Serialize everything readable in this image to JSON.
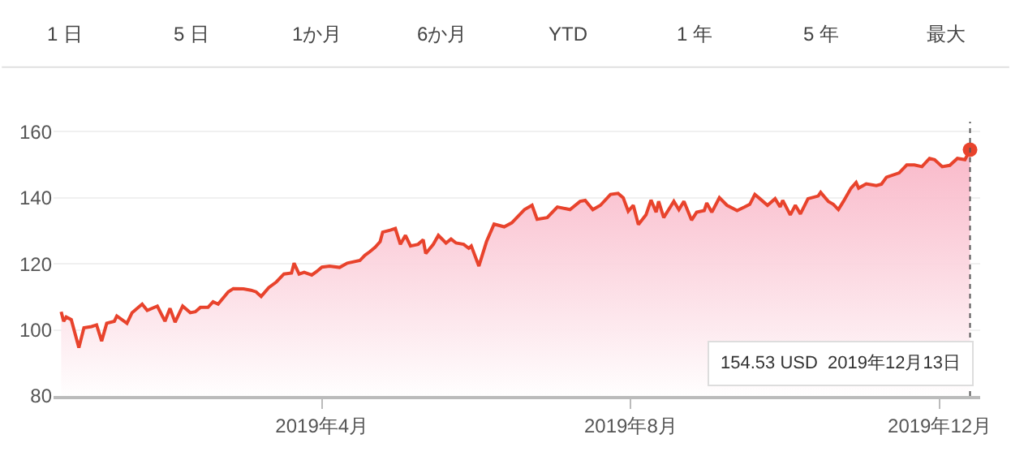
{
  "chart_data": {
    "type": "area",
    "series": [
      {
        "color": "#e8432c",
        "x": [
          "2018-12-19",
          "2018-12-20",
          "2018-12-21",
          "2018-12-23",
          "2018-12-26",
          "2018-12-28",
          "2018-12-31",
          "2019-01-02",
          "2019-01-04",
          "2019-01-06",
          "2019-01-09",
          "2019-01-10",
          "2019-01-14",
          "2019-01-16",
          "2019-01-20",
          "2019-01-22",
          "2019-01-26",
          "2019-01-29",
          "2019-01-31",
          "2019-02-02",
          "2019-02-05",
          "2019-02-08",
          "2019-02-10",
          "2019-02-12",
          "2019-02-15",
          "2019-02-17",
          "2019-02-19",
          "2019-02-23",
          "2019-02-25",
          "2019-03-01",
          "2019-03-04",
          "2019-03-06",
          "2019-03-08",
          "2019-03-11",
          "2019-03-14",
          "2019-03-17",
          "2019-03-20",
          "2019-03-21",
          "2019-03-23",
          "2019-03-25",
          "2019-03-28",
          "2019-03-30",
          "2019-04-01",
          "2019-04-04",
          "2019-04-08",
          "2019-04-11",
          "2019-04-16",
          "2019-04-18",
          "2019-04-20",
          "2019-04-22",
          "2019-04-24",
          "2019-04-25",
          "2019-04-28",
          "2019-04-30",
          "2019-05-02",
          "2019-05-04",
          "2019-05-06",
          "2019-05-09",
          "2019-05-11",
          "2019-05-12",
          "2019-05-15",
          "2019-05-17",
          "2019-05-20",
          "2019-05-22",
          "2019-05-24",
          "2019-05-27",
          "2019-05-29",
          "2019-05-30",
          "2019-06-02",
          "2019-06-05",
          "2019-06-08",
          "2019-06-12",
          "2019-06-15",
          "2019-06-20",
          "2019-06-23",
          "2019-06-25",
          "2019-06-29",
          "2019-07-03",
          "2019-07-08",
          "2019-07-12",
          "2019-07-14",
          "2019-07-17",
          "2019-07-20",
          "2019-07-24",
          "2019-07-27",
          "2019-07-29",
          "2019-07-31",
          "2019-08-02",
          "2019-08-04",
          "2019-08-07",
          "2019-08-09",
          "2019-08-11",
          "2019-08-12",
          "2019-08-14",
          "2019-08-18",
          "2019-08-20",
          "2019-08-22",
          "2019-08-25",
          "2019-08-27",
          "2019-08-30",
          "2019-08-31",
          "2019-09-02",
          "2019-09-05",
          "2019-09-08",
          "2019-09-12",
          "2019-09-15",
          "2019-09-17",
          "2019-09-19",
          "2019-09-21",
          "2019-09-24",
          "2019-09-27",
          "2019-09-29",
          "2019-09-30",
          "2019-10-03",
          "2019-10-05",
          "2019-10-07",
          "2019-10-10",
          "2019-10-14",
          "2019-10-15",
          "2019-10-18",
          "2019-10-20",
          "2019-10-22",
          "2019-10-24",
          "2019-10-27",
          "2019-10-29",
          "2019-10-30",
          "2019-11-02",
          "2019-11-06",
          "2019-11-08",
          "2019-11-10",
          "2019-11-15",
          "2019-11-18",
          "2019-11-21",
          "2019-11-24",
          "2019-11-27",
          "2019-11-29",
          "2019-12-02",
          "2019-12-05",
          "2019-12-08",
          "2019-12-11",
          "2019-12-13"
        ],
        "values": [
          105.5,
          102.6,
          103.9,
          103.1,
          94.6,
          100.6,
          101.0,
          101.5,
          96.6,
          102.0,
          102.6,
          104.2,
          102.0,
          105.2,
          107.8,
          105.9,
          107.2,
          102.6,
          106.5,
          102.3,
          107.2,
          105.2,
          105.5,
          106.8,
          106.8,
          108.5,
          107.8,
          111.5,
          112.5,
          112.4,
          112.0,
          111.5,
          110.1,
          112.8,
          114.5,
          116.9,
          117.2,
          120.2,
          116.9,
          117.4,
          116.6,
          117.7,
          119.0,
          119.3,
          118.9,
          120.2,
          121.0,
          122.6,
          123.7,
          125.0,
          126.7,
          129.6,
          130.2,
          130.7,
          125.9,
          128.6,
          125.4,
          125.9,
          127.3,
          123.1,
          125.9,
          128.6,
          126.3,
          127.5,
          126.3,
          125.9,
          124.7,
          125.4,
          119.3,
          126.7,
          132.0,
          131.2,
          132.4,
          136.4,
          137.7,
          133.5,
          134.0,
          137.2,
          136.4,
          138.9,
          139.2,
          136.4,
          137.7,
          141.0,
          141.3,
          140.0,
          135.9,
          137.7,
          131.9,
          134.8,
          139.3,
          135.6,
          138.9,
          134.0,
          138.9,
          136.4,
          138.9,
          133.2,
          135.6,
          136.1,
          138.4,
          135.6,
          140.0,
          137.7,
          136.1,
          137.2,
          138.0,
          141.0,
          139.7,
          137.7,
          139.7,
          137.2,
          139.2,
          134.8,
          137.7,
          135.1,
          139.7,
          140.5,
          141.6,
          138.9,
          138.0,
          136.4,
          138.9,
          142.9,
          144.6,
          142.9,
          144.2,
          143.7,
          144.1,
          146.2,
          147.5,
          149.9,
          149.9,
          149.4,
          151.9,
          151.5,
          149.4,
          149.8,
          151.9,
          151.5,
          154.53
        ]
      }
    ],
    "xlim": [
      "2018-12-16",
      "2019-12-17"
    ],
    "xticks": [
      {
        "value": "2019-04-01",
        "label": "2019年4月"
      },
      {
        "value": "2019-08-01",
        "label": "2019年8月"
      },
      {
        "value": "2019-12-01",
        "label": "2019年12月"
      }
    ],
    "ylim": [
      80,
      163
    ],
    "yticks": [
      80,
      100,
      120,
      140,
      160
    ],
    "grid": "y",
    "ref_lines": [
      {
        "axis": "x",
        "value": "2019-12-13",
        "line_style": "dotted",
        "color": "#555555"
      }
    ],
    "annotations": [
      "1 日",
      "5 日",
      "1か月",
      "6か月",
      "YTD",
      "1 年",
      "5 年",
      "最大",
      "154.53 USD  2019年12月13日"
    ]
  }
}
